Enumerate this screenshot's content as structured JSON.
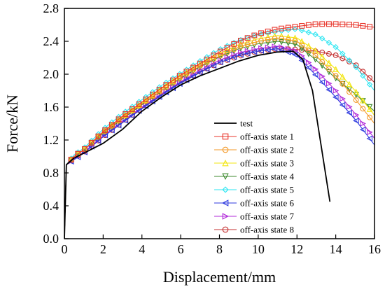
{
  "chart_data": {
    "type": "line",
    "title": "",
    "xlabel": "Displacement/mm",
    "ylabel": "Force/kN",
    "xlim": [
      0,
      16
    ],
    "ylim": [
      0,
      2.8
    ],
    "xticks": [
      0,
      2,
      4,
      6,
      8,
      10,
      12,
      14,
      16
    ],
    "yticks": [
      0.0,
      0.4,
      0.8,
      1.2,
      1.6,
      2.0,
      2.4,
      2.8
    ],
    "xtick_labels": [
      "0",
      "2",
      "4",
      "6",
      "8",
      "10",
      "12",
      "14",
      "16"
    ],
    "ytick_labels": [
      "0.0",
      "0.4",
      "0.8",
      "1.2",
      "1.6",
      "2.0",
      "2.4",
      "2.8"
    ],
    "grid": false,
    "legend_position": "lower-right",
    "series": [
      {
        "name": "test",
        "color": "#000000",
        "marker": "none",
        "points": [
          [
            0,
            0
          ],
          [
            0.1,
            0.9
          ],
          [
            0.5,
            0.98
          ],
          [
            1,
            1.04
          ],
          [
            2,
            1.16
          ],
          [
            3,
            1.33
          ],
          [
            4,
            1.55
          ],
          [
            5,
            1.72
          ],
          [
            6,
            1.87
          ],
          [
            7,
            1.98
          ],
          [
            8,
            2.07
          ],
          [
            9,
            2.16
          ],
          [
            10,
            2.23
          ],
          [
            11,
            2.27
          ],
          [
            11.8,
            2.28
          ],
          [
            12.3,
            2.18
          ],
          [
            12.8,
            1.8
          ],
          [
            13.2,
            1.2
          ],
          [
            13.7,
            0.45
          ]
        ]
      },
      {
        "name": "off-axis state 1",
        "color": "#e8352b",
        "marker": "square",
        "points": [
          [
            0,
            0
          ],
          [
            0.1,
            0.9
          ],
          [
            0.5,
            1.0
          ],
          [
            1,
            1.08
          ],
          [
            2,
            1.3
          ],
          [
            3,
            1.49
          ],
          [
            4,
            1.66
          ],
          [
            5,
            1.83
          ],
          [
            6,
            1.99
          ],
          [
            7,
            2.13
          ],
          [
            8,
            2.27
          ],
          [
            9,
            2.4
          ],
          [
            10,
            2.49
          ],
          [
            11,
            2.55
          ],
          [
            12,
            2.58
          ],
          [
            13,
            2.61
          ],
          [
            14,
            2.61
          ],
          [
            15,
            2.6
          ],
          [
            16,
            2.57
          ]
        ]
      },
      {
        "name": "off-axis state 2",
        "color": "#f39a2a",
        "marker": "circle",
        "points": [
          [
            0,
            0
          ],
          [
            0.1,
            0.9
          ],
          [
            0.5,
            1.0
          ],
          [
            1,
            1.08
          ],
          [
            2,
            1.29
          ],
          [
            3,
            1.47
          ],
          [
            4,
            1.64
          ],
          [
            5,
            1.8
          ],
          [
            6,
            1.96
          ],
          [
            7,
            2.1
          ],
          [
            8,
            2.22
          ],
          [
            9,
            2.33
          ],
          [
            10,
            2.4
          ],
          [
            11,
            2.44
          ],
          [
            12,
            2.4
          ],
          [
            13,
            2.22
          ],
          [
            14,
            1.98
          ],
          [
            15,
            1.7
          ],
          [
            16,
            1.4
          ]
        ]
      },
      {
        "name": "off-axis state 3",
        "color": "#f2e60f",
        "marker": "triangle-up",
        "points": [
          [
            0,
            0
          ],
          [
            0.1,
            0.9
          ],
          [
            0.5,
            1.0
          ],
          [
            1,
            1.08
          ],
          [
            2,
            1.3
          ],
          [
            3,
            1.48
          ],
          [
            4,
            1.65
          ],
          [
            5,
            1.82
          ],
          [
            6,
            1.98
          ],
          [
            7,
            2.12
          ],
          [
            8,
            2.25
          ],
          [
            9,
            2.36
          ],
          [
            10,
            2.43
          ],
          [
            11,
            2.47
          ],
          [
            12,
            2.44
          ],
          [
            13,
            2.28
          ],
          [
            14,
            2.06
          ],
          [
            15,
            1.8
          ],
          [
            16,
            1.5
          ]
        ]
      },
      {
        "name": "off-axis state 4",
        "color": "#3c8a2e",
        "marker": "triangle-down",
        "points": [
          [
            0,
            0
          ],
          [
            0.1,
            0.9
          ],
          [
            0.5,
            1.0
          ],
          [
            1,
            1.08
          ],
          [
            2,
            1.28
          ],
          [
            3,
            1.46
          ],
          [
            4,
            1.63
          ],
          [
            5,
            1.8
          ],
          [
            6,
            1.95
          ],
          [
            7,
            2.09
          ],
          [
            8,
            2.21
          ],
          [
            9,
            2.31
          ],
          [
            10,
            2.37
          ],
          [
            11,
            2.4
          ],
          [
            12,
            2.36
          ],
          [
            13,
            2.17
          ],
          [
            14,
            1.95
          ],
          [
            15,
            1.76
          ],
          [
            16,
            1.55
          ]
        ]
      },
      {
        "name": "off-axis state 5",
        "color": "#2ee6f2",
        "marker": "diamond",
        "points": [
          [
            0,
            0
          ],
          [
            0.1,
            0.9
          ],
          [
            0.5,
            1.02
          ],
          [
            1,
            1.1
          ],
          [
            2,
            1.33
          ],
          [
            3,
            1.52
          ],
          [
            4,
            1.69
          ],
          [
            5,
            1.86
          ],
          [
            6,
            2.01
          ],
          [
            7,
            2.16
          ],
          [
            8,
            2.3
          ],
          [
            9,
            2.41
          ],
          [
            10,
            2.48
          ],
          [
            11,
            2.52
          ],
          [
            12,
            2.55
          ],
          [
            13,
            2.48
          ],
          [
            14,
            2.33
          ],
          [
            15,
            2.1
          ],
          [
            16,
            1.8
          ]
        ]
      },
      {
        "name": "off-axis state 6",
        "color": "#2e3adf",
        "marker": "triangle-left",
        "points": [
          [
            0,
            0
          ],
          [
            0.1,
            0.9
          ],
          [
            0.5,
            0.96
          ],
          [
            1,
            1.04
          ],
          [
            2,
            1.24
          ],
          [
            3,
            1.41
          ],
          [
            4,
            1.58
          ],
          [
            5,
            1.74
          ],
          [
            6,
            1.89
          ],
          [
            7,
            2.02
          ],
          [
            8,
            2.14
          ],
          [
            9,
            2.23
          ],
          [
            10,
            2.28
          ],
          [
            11,
            2.31
          ],
          [
            12,
            2.23
          ],
          [
            13,
            1.98
          ],
          [
            14,
            1.72
          ],
          [
            15,
            1.45
          ],
          [
            16,
            1.14
          ]
        ]
      },
      {
        "name": "off-axis state 7",
        "color": "#b12ad9",
        "marker": "triangle-right",
        "points": [
          [
            0,
            0
          ],
          [
            0.1,
            0.9
          ],
          [
            0.5,
            0.97
          ],
          [
            1,
            1.05
          ],
          [
            2,
            1.25
          ],
          [
            3,
            1.43
          ],
          [
            4,
            1.6
          ],
          [
            5,
            1.76
          ],
          [
            6,
            1.91
          ],
          [
            7,
            2.05
          ],
          [
            8,
            2.17
          ],
          [
            9,
            2.26
          ],
          [
            10,
            2.31
          ],
          [
            11,
            2.34
          ],
          [
            12,
            2.28
          ],
          [
            13,
            2.05
          ],
          [
            14,
            1.8
          ],
          [
            15,
            1.52
          ],
          [
            16,
            1.22
          ]
        ]
      },
      {
        "name": "off-axis state 8",
        "color": "#c43030",
        "marker": "circle",
        "points": [
          [
            0,
            0
          ],
          [
            0.1,
            0.9
          ],
          [
            0.5,
            0.98
          ],
          [
            1,
            1.05
          ],
          [
            2,
            1.24
          ],
          [
            3,
            1.42
          ],
          [
            4,
            1.59
          ],
          [
            5,
            1.75
          ],
          [
            6,
            1.9
          ],
          [
            7,
            2.03
          ],
          [
            8,
            2.14
          ],
          [
            9,
            2.22
          ],
          [
            10,
            2.28
          ],
          [
            11,
            2.31
          ],
          [
            12,
            2.3
          ],
          [
            13,
            2.28
          ],
          [
            14,
            2.23
          ],
          [
            15,
            2.12
          ],
          [
            16,
            1.9
          ]
        ]
      }
    ]
  }
}
